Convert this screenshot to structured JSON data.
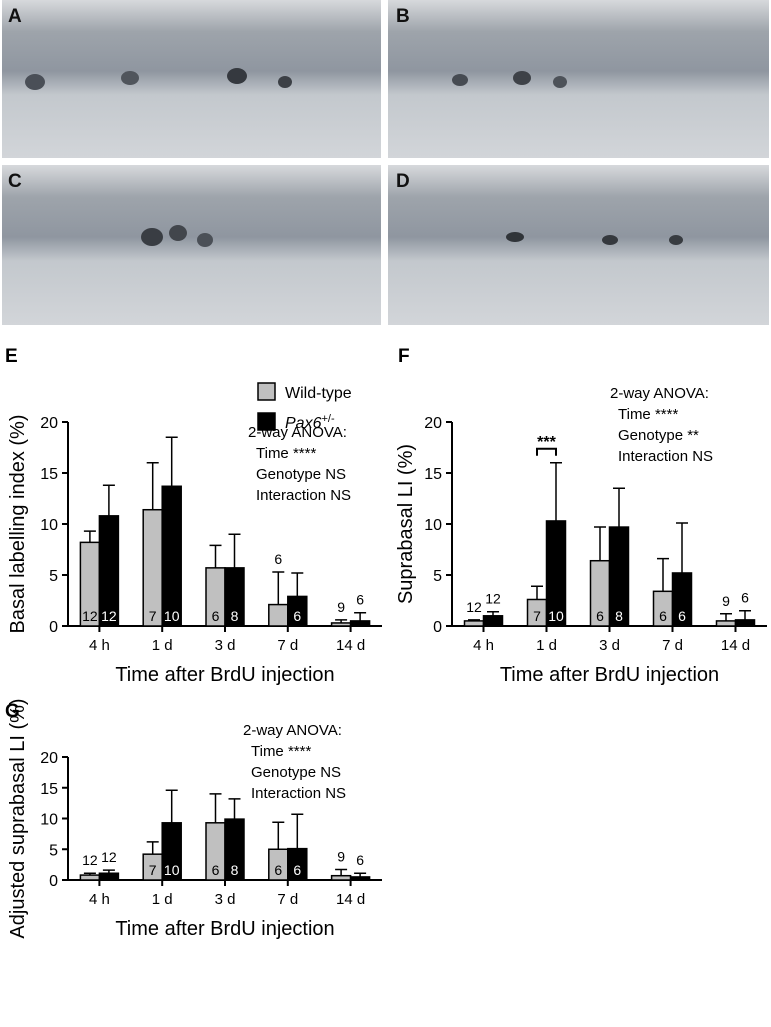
{
  "micrographs": [
    {
      "label": "A"
    },
    {
      "label": "B"
    },
    {
      "label": "C"
    },
    {
      "label": "D"
    }
  ],
  "chart_data": [
    {
      "type": "bar",
      "panel": "E",
      "y_label": "Basal labelling index (%)",
      "x_label": "Time after BrdU injection",
      "categories": [
        "4 h",
        "1 d",
        "3 d",
        "7 d",
        "14 d"
      ],
      "ylim": [
        0,
        20
      ],
      "yticks": [
        0,
        5,
        10,
        15,
        20
      ],
      "annotation": [
        "2-way ANOVA:",
        "Time ****",
        "Genotype NS",
        "Interaction NS"
      ],
      "series": [
        {
          "name": "Wild-type",
          "color": "#c0c0c0",
          "values": [
            8.2,
            11.4,
            5.7,
            2.1,
            0.3
          ],
          "errors": [
            1.1,
            4.6,
            2.2,
            3.2,
            0.3
          ],
          "n": [
            12,
            7,
            6,
            6,
            9
          ]
        },
        {
          "name": "Pax6",
          "name_superscript": "+/-",
          "color": "#000000",
          "values": [
            10.8,
            13.7,
            5.7,
            2.9,
            0.5
          ],
          "errors": [
            3.0,
            4.8,
            3.3,
            2.3,
            0.8
          ],
          "n": [
            12,
            10,
            8,
            6,
            6
          ]
        }
      ]
    },
    {
      "type": "bar",
      "panel": "F",
      "y_label": "Suprabasal LI (%)",
      "x_label": "Time after BrdU injection",
      "categories": [
        "4 h",
        "1 d",
        "3 d",
        "7 d",
        "14 d"
      ],
      "ylim": [
        0,
        20
      ],
      "yticks": [
        0,
        5,
        10,
        15,
        20
      ],
      "annotation": [
        "2-way ANOVA:",
        "Time ****",
        "Genotype **",
        "Interaction NS"
      ],
      "significance": [
        {
          "category": "1 d",
          "label": "***"
        }
      ],
      "series": [
        {
          "color": "#c0c0c0",
          "values": [
            0.5,
            2.6,
            6.4,
            3.4,
            0.5
          ],
          "errors": [
            0.1,
            1.3,
            3.3,
            3.2,
            0.7
          ],
          "n": [
            12,
            7,
            6,
            6,
            9
          ]
        },
        {
          "color": "#000000",
          "values": [
            1.0,
            10.3,
            9.7,
            5.2,
            0.6
          ],
          "errors": [
            0.4,
            5.7,
            3.8,
            4.9,
            0.9
          ],
          "n": [
            12,
            10,
            8,
            6,
            6
          ]
        }
      ]
    },
    {
      "type": "bar",
      "panel": "G",
      "y_label": "Adjusted suprabasal LI (%)",
      "x_label": "Time after BrdU injection",
      "categories": [
        "4 h",
        "1 d",
        "3 d",
        "7 d",
        "14 d"
      ],
      "ylim": [
        0,
        20
      ],
      "yticks": [
        0,
        5,
        10,
        15,
        20
      ],
      "annotation": [
        "2-way ANOVA:",
        "Time ****",
        "Genotype NS",
        "Interaction NS"
      ],
      "series": [
        {
          "color": "#c0c0c0",
          "values": [
            0.8,
            4.2,
            9.3,
            5.0,
            0.7
          ],
          "errors": [
            0.3,
            2.0,
            4.7,
            4.4,
            1.0
          ],
          "n": [
            12,
            7,
            6,
            6,
            9
          ]
        },
        {
          "color": "#000000",
          "values": [
            1.1,
            9.3,
            9.9,
            5.1,
            0.5
          ],
          "errors": [
            0.5,
            5.3,
            3.3,
            5.6,
            0.6
          ],
          "n": [
            12,
            10,
            8,
            6,
            6
          ]
        }
      ]
    }
  ]
}
